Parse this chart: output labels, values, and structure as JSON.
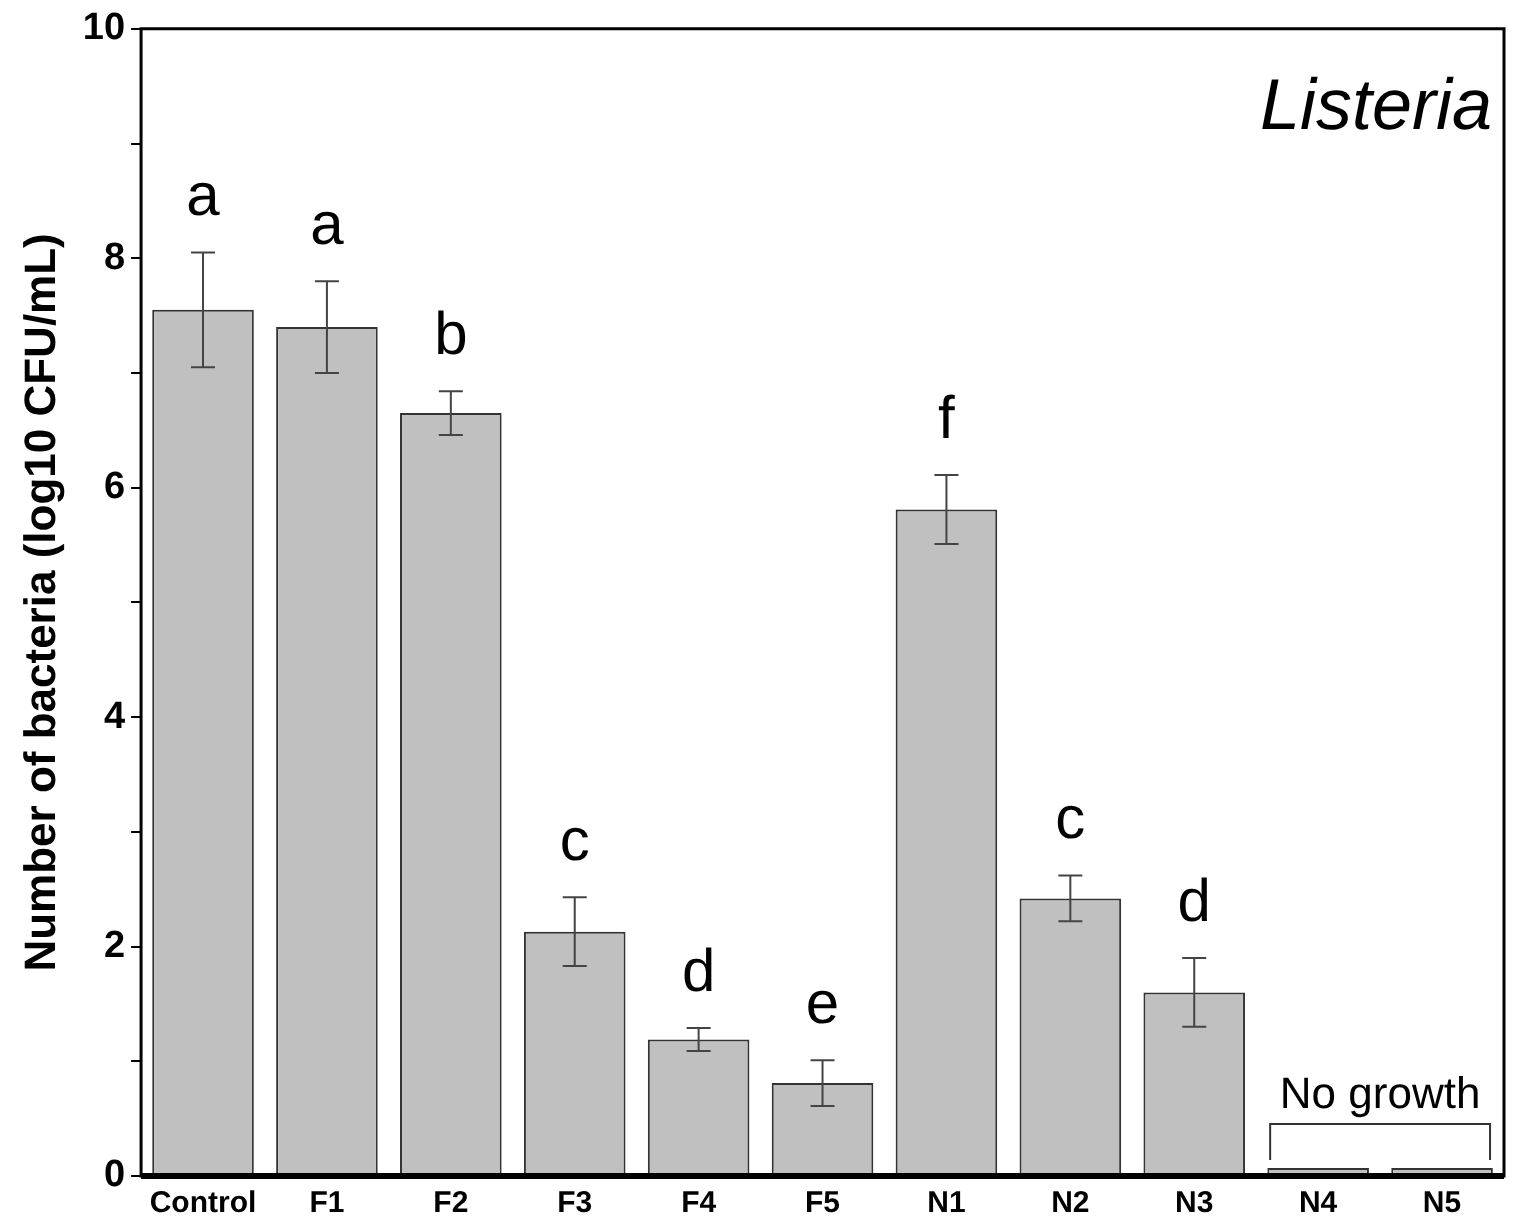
{
  "chart_data": {
    "type": "bar",
    "title": "Listeria",
    "ylabel": "Number of bacteria (log10 CFU/mL)",
    "categories": [
      "Control",
      "F1",
      "F2",
      "F3",
      "F4",
      "F5",
      "N1",
      "N2",
      "N3",
      "N4",
      "N5"
    ],
    "values": [
      7.55,
      7.4,
      6.65,
      2.13,
      1.19,
      0.81,
      5.81,
      2.42,
      1.6,
      0.07,
      0.07
    ],
    "errors": [
      0.5,
      0.4,
      0.19,
      0.3,
      0.1,
      0.2,
      0.3,
      0.2,
      0.3,
      null,
      null
    ],
    "color": "#c0c0c0",
    "ylim": [
      0,
      10
    ],
    "yticks": [
      0,
      {
        "value": 1,
        "label": null
      },
      2,
      {
        "value": 3,
        "label": null
      },
      4,
      {
        "value": 5,
        "label": null
      },
      6,
      {
        "value": 7,
        "label": null
      },
      8,
      {
        "value": 9,
        "label": null
      },
      10
    ],
    "grid": false,
    "legend": false,
    "annotations": [
      "a",
      "a",
      "b",
      "c",
      "d",
      "e",
      "f",
      "c",
      "d",
      "No growth"
    ]
  }
}
